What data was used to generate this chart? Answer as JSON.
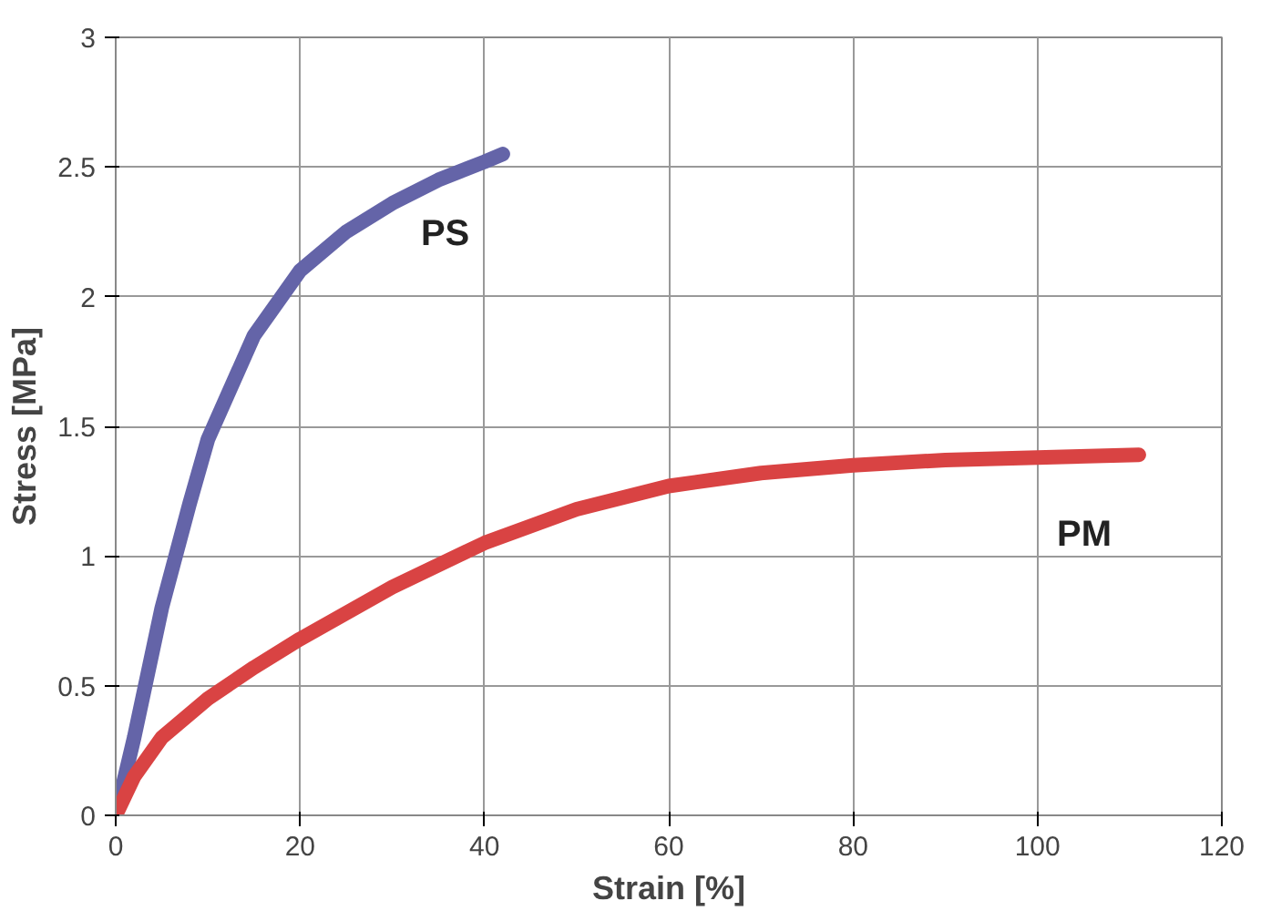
{
  "chart_data": {
    "type": "line",
    "xlabel": "Strain [%]",
    "ylabel": "Stress [MPa]",
    "xlim": [
      0,
      120
    ],
    "xticks": [
      0,
      20,
      40,
      60,
      80,
      100,
      120
    ],
    "ylim": [
      0,
      3
    ],
    "yticks": [
      0,
      0.5,
      1,
      1.5,
      2,
      2.5,
      3
    ],
    "grid": true,
    "marker": "none",
    "line_style": "solid",
    "series": [
      {
        "name": "PS",
        "color": "#6464a8",
        "x": [
          0,
          2,
          5,
          8,
          10,
          15,
          20,
          25,
          30,
          35,
          40,
          42
        ],
        "values": [
          0,
          0.3,
          0.8,
          1.2,
          1.45,
          1.85,
          2.1,
          2.25,
          2.36,
          2.45,
          2.52,
          2.55
        ]
      },
      {
        "name": "PM",
        "color": "#d94343",
        "x": [
          0,
          2,
          5,
          10,
          15,
          20,
          30,
          40,
          50,
          60,
          70,
          80,
          90,
          100,
          111
        ],
        "values": [
          0,
          0.15,
          0.3,
          0.45,
          0.57,
          0.68,
          0.88,
          1.05,
          1.18,
          1.27,
          1.32,
          1.35,
          1.37,
          1.38,
          1.39
        ]
      }
    ]
  }
}
